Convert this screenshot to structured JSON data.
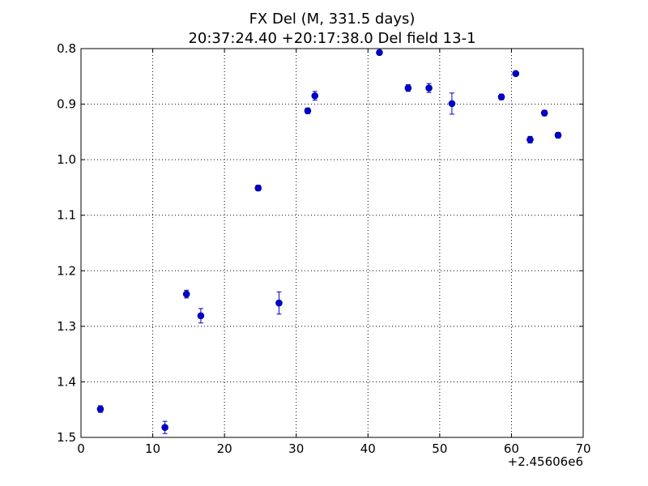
{
  "chart_data": {
    "type": "scatter",
    "title": "FX Del (M, 331.5 days)",
    "subtitle": "20:37:24.40 +20:17:38.0 Del field 13-1",
    "xlabel": "",
    "ylabel": "",
    "x_offset_label": "+2.45606e6",
    "xlim": [
      0,
      70
    ],
    "ylim": [
      1.5,
      0.8
    ],
    "y_inverted": true,
    "grid": true,
    "x_ticks": [
      "0",
      "10",
      "20",
      "30",
      "40",
      "50",
      "60",
      "70"
    ],
    "y_ticks": [
      "0.8",
      "0.9",
      "1.0",
      "1.1",
      "1.2",
      "1.3",
      "1.4",
      "1.5"
    ],
    "x_tick_values": [
      0,
      10,
      20,
      30,
      40,
      50,
      60,
      70
    ],
    "y_tick_values": [
      0.8,
      0.9,
      1.0,
      1.1,
      1.2,
      1.3,
      1.4,
      1.5
    ],
    "marker_color": "#0000cc",
    "series": [
      {
        "points": [
          {
            "x": 2.7,
            "y": 1.449,
            "err": 0.006
          },
          {
            "x": 11.7,
            "y": 1.482,
            "err": 0.011
          },
          {
            "x": 14.7,
            "y": 1.242,
            "err": 0.007
          },
          {
            "x": 16.7,
            "y": 1.281,
            "err": 0.013
          },
          {
            "x": 24.7,
            "y": 1.051,
            "err": 0.005
          },
          {
            "x": 27.6,
            "y": 1.258,
            "err": 0.02
          },
          {
            "x": 31.6,
            "y": 0.912,
            "err": 0.005
          },
          {
            "x": 32.6,
            "y": 0.885,
            "err": 0.008
          },
          {
            "x": 41.6,
            "y": 0.807,
            "err": 0.004
          },
          {
            "x": 45.6,
            "y": 0.871,
            "err": 0.006
          },
          {
            "x": 48.5,
            "y": 0.871,
            "err": 0.008
          },
          {
            "x": 51.7,
            "y": 0.899,
            "err": 0.019
          },
          {
            "x": 58.6,
            "y": 0.887,
            "err": 0.005
          },
          {
            "x": 60.6,
            "y": 0.845,
            "err": 0.004
          },
          {
            "x": 62.6,
            "y": 0.964,
            "err": 0.006
          },
          {
            "x": 64.6,
            "y": 0.916,
            "err": 0.005
          },
          {
            "x": 66.5,
            "y": 0.956,
            "err": 0.005
          }
        ]
      }
    ]
  }
}
